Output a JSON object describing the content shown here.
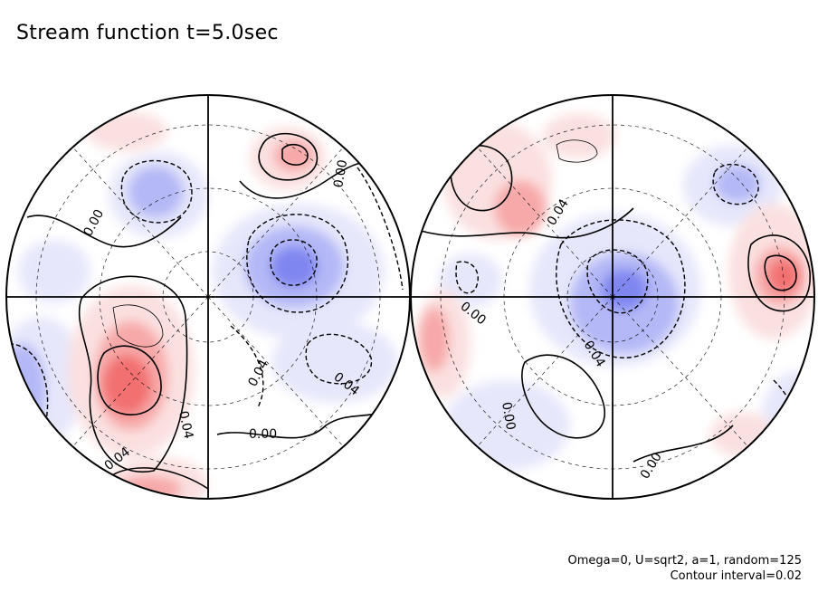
{
  "title": "Stream function t=5.0sec",
  "footnotes": {
    "params": "Omega=0, U=sqrt2, a=1, random=125",
    "interval": "Contour interval=0.02"
  },
  "colors": {
    "positive_strong": "#f26f6f",
    "positive_mid": "#f7a8a8",
    "positive_weak": "#fbe0e0",
    "negative_strong": "#7f86f0",
    "negative_mid": "#b4b8f6",
    "negative_weak": "#e6e7fb",
    "line": "#000000"
  },
  "contour_labels": {
    "left": [
      "0.00",
      "0.00",
      "0.04",
      "0.04",
      "0.04",
      "0.04",
      "0.00"
    ],
    "right": [
      "0.04",
      "0.00",
      "0.04",
      "0.00",
      "0.00"
    ]
  }
}
